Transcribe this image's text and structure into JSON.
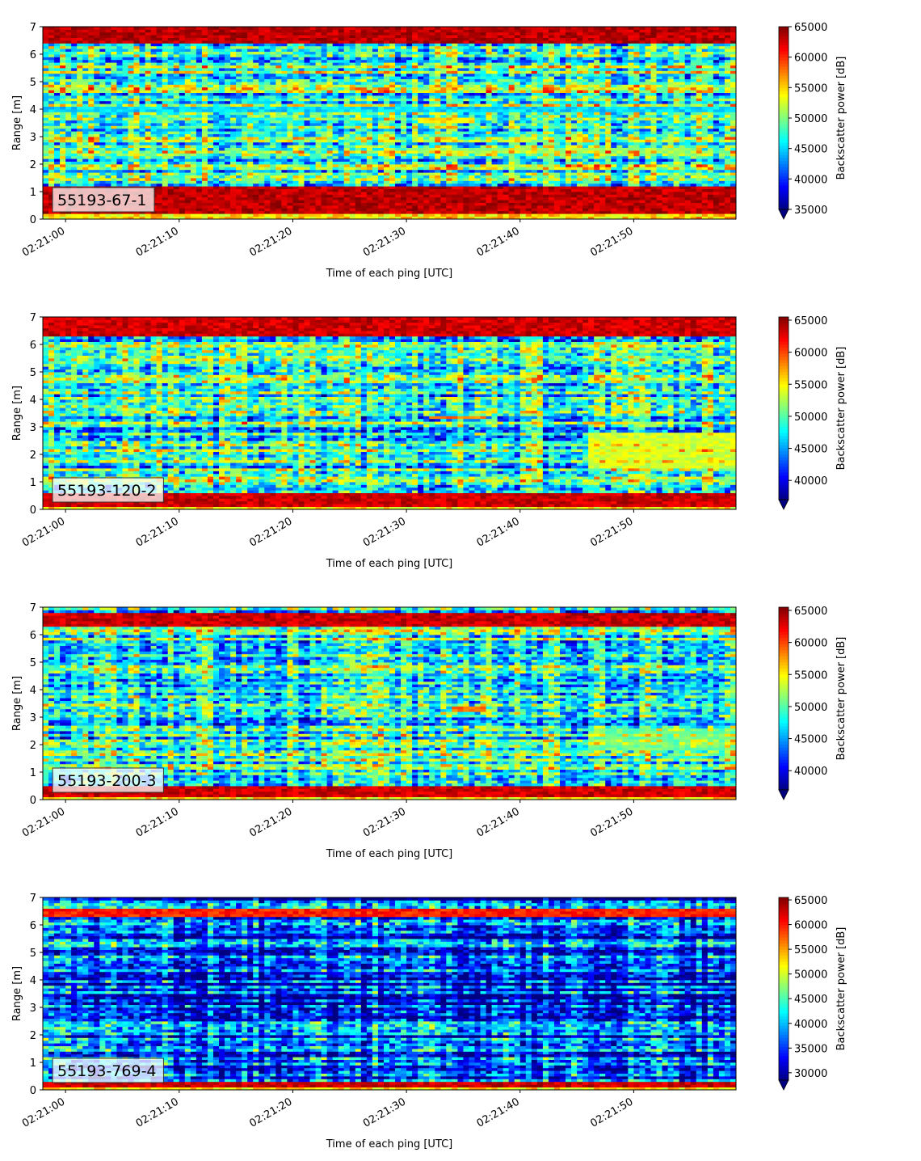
{
  "chart_data": [
    {
      "type": "heatmap",
      "label": "55193-67-1",
      "xlabel": "Time of each ping [UTC]",
      "ylabel": "Range [m]",
      "xlim": [
        "02:20:58",
        "02:21:59"
      ],
      "ylim": [
        0,
        7
      ],
      "x_ticks": [
        "02:21:00",
        "02:21:10",
        "02:21:20",
        "02:21:30",
        "02:21:40",
        "02:21:50"
      ],
      "y_ticks": [
        "0",
        "1",
        "2",
        "3",
        "4",
        "5",
        "6",
        "7"
      ],
      "colorbar": {
        "label": "Backscatter power [dB]",
        "range": [
          35000,
          65000
        ],
        "ticks": [
          "35000",
          "40000",
          "45000",
          "50000",
          "55000",
          "60000",
          "65000"
        ],
        "extend": "min",
        "colormap": "jet"
      },
      "features": [
        {
          "range_m": [
            0.2,
            1.2
          ],
          "power": 65000
        },
        {
          "range_m": [
            6.4,
            7.0
          ],
          "power": 65000
        },
        {
          "range_m": [
            3.9,
            4.1
          ],
          "power": 47000
        },
        {
          "range_m": [
            3.5,
            3.7
          ],
          "time": [
            "02:21:31",
            "02:21:36"
          ],
          "power": 56000
        },
        {
          "range_m": [
            2.4,
            2.6
          ],
          "time": [
            "02:21:30",
            "02:21:55"
          ],
          "power": 52000
        }
      ]
    },
    {
      "type": "heatmap",
      "label": "55193-120-2",
      "xlabel": "Time of each ping [UTC]",
      "ylabel": "Range [m]",
      "xlim": [
        "02:20:58",
        "02:21:59"
      ],
      "ylim": [
        0,
        7
      ],
      "x_ticks": [
        "02:21:00",
        "02:21:10",
        "02:21:20",
        "02:21:30",
        "02:21:40",
        "02:21:50"
      ],
      "y_ticks": [
        "0",
        "1",
        "2",
        "3",
        "4",
        "5",
        "6",
        "7"
      ],
      "colorbar": {
        "label": "Backscatter power [dB]",
        "range": [
          37000,
          65500
        ],
        "ticks": [
          "40000",
          "45000",
          "50000",
          "55000",
          "60000",
          "65000"
        ],
        "extend": "min",
        "colormap": "jet"
      },
      "features": [
        {
          "range_m": [
            0.1,
            0.6
          ],
          "power": 65000
        },
        {
          "range_m": [
            6.3,
            7.0
          ],
          "power": 65000
        },
        {
          "range_m": [
            3.3,
            3.4
          ],
          "time": [
            "02:21:32",
            "02:21:37"
          ],
          "power": 60000
        },
        {
          "range_m": [
            1.5,
            2.8
          ],
          "time": [
            "02:21:46",
            "02:21:59"
          ],
          "power": 55000
        }
      ]
    },
    {
      "type": "heatmap",
      "label": "55193-200-3",
      "xlabel": "Time of each ping [UTC]",
      "ylabel": "Range [m]",
      "xlim": [
        "02:20:58",
        "02:21:59"
      ],
      "ylim": [
        0,
        7
      ],
      "x_ticks": [
        "02:21:00",
        "02:21:10",
        "02:21:20",
        "02:21:30",
        "02:21:40",
        "02:21:50"
      ],
      "y_ticks": [
        "0",
        "1",
        "2",
        "3",
        "4",
        "5",
        "6",
        "7"
      ],
      "colorbar": {
        "label": "Backscatter power [dB]",
        "range": [
          37000,
          65500
        ],
        "ticks": [
          "40000",
          "45000",
          "50000",
          "55000",
          "60000",
          "65000"
        ],
        "extend": "min",
        "colormap": "jet"
      },
      "features": [
        {
          "range_m": [
            0.1,
            0.5
          ],
          "power": 65000
        },
        {
          "range_m": [
            6.3,
            6.8
          ],
          "power": 65000
        },
        {
          "range_m": [
            3.2,
            3.4
          ],
          "time": [
            "02:21:34",
            "02:21:37"
          ],
          "power": 60000
        },
        {
          "range_m": [
            1.8,
            2.6
          ],
          "time": [
            "02:21:46",
            "02:21:59"
          ],
          "power": 52000
        }
      ]
    },
    {
      "type": "heatmap",
      "label": "55193-769-4",
      "xlabel": "Time of each ping [UTC]",
      "ylabel": "Range [m]",
      "xlim": [
        "02:20:58",
        "02:21:59"
      ],
      "ylim": [
        0,
        7
      ],
      "x_ticks": [
        "02:21:00",
        "02:21:10",
        "02:21:20",
        "02:21:30",
        "02:21:40",
        "02:21:50"
      ],
      "y_ticks": [
        "0",
        "1",
        "2",
        "3",
        "4",
        "5",
        "6",
        "7"
      ],
      "colorbar": {
        "label": "Backscatter power [dB]",
        "range": [
          28500,
          65500
        ],
        "ticks": [
          "30000",
          "35000",
          "40000",
          "45000",
          "50000",
          "55000",
          "60000",
          "65000"
        ],
        "extend": "min",
        "colormap": "jet"
      },
      "features": [
        {
          "range_m": [
            0.15,
            0.3
          ],
          "power": 65000
        },
        {
          "range_m": [
            6.3,
            6.6
          ],
          "power": 62000
        }
      ]
    }
  ]
}
